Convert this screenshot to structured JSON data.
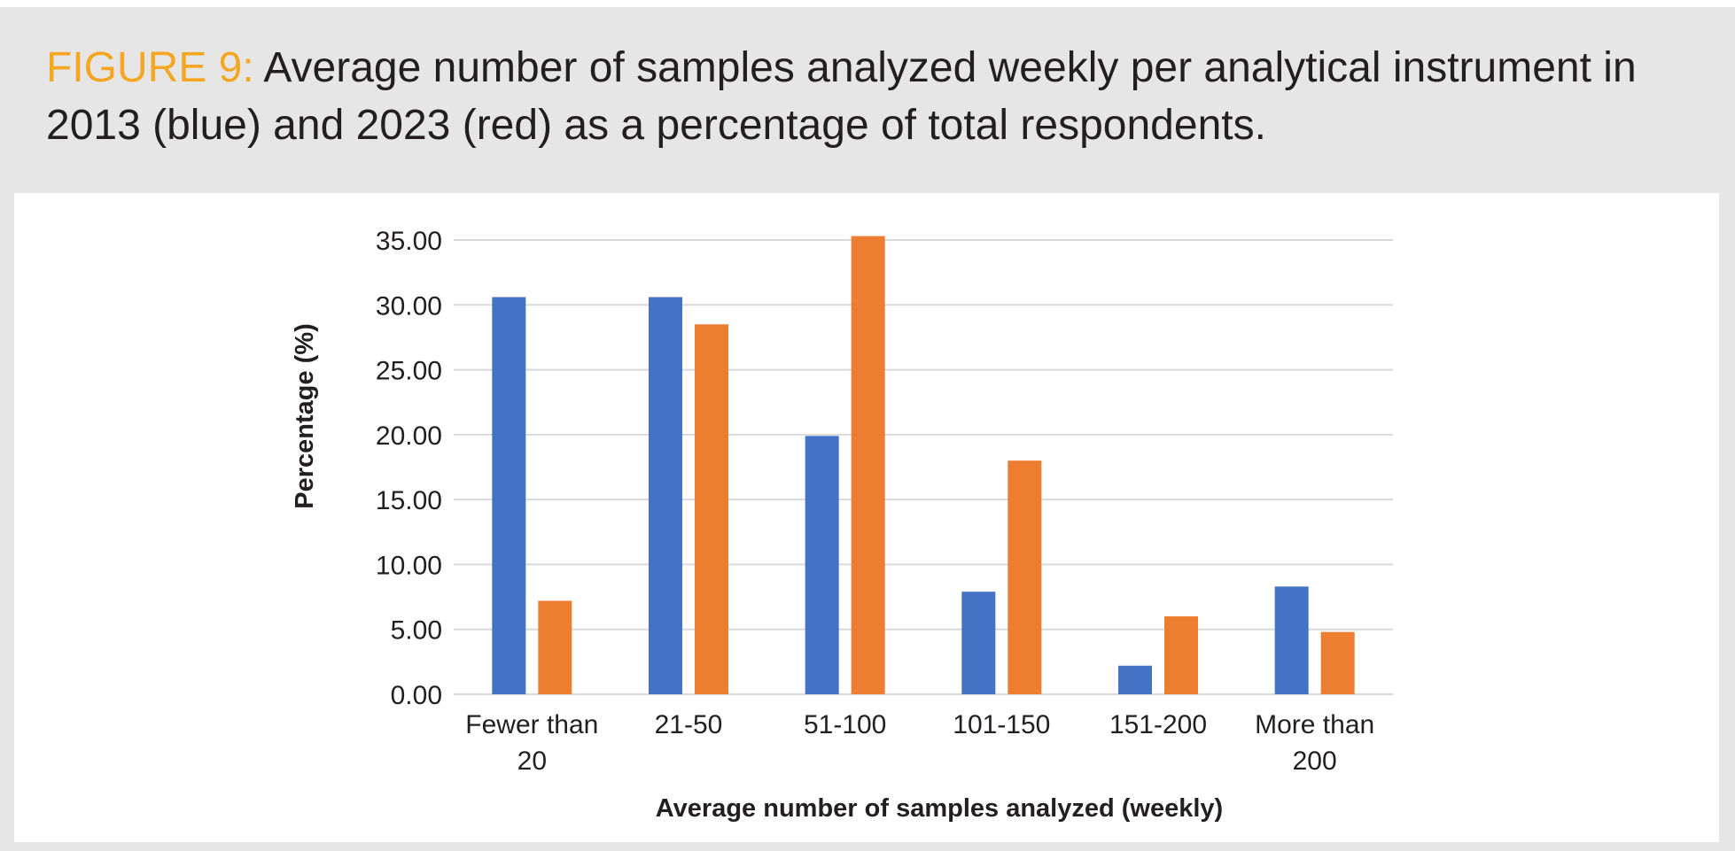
{
  "caption": {
    "label": "FIGURE 9:",
    "text": "Average number of samples analyzed weekly per analytical instrument in 2013 (blue) and 2023 (red) as a percentage of total respondents."
  },
  "colors": {
    "label": "#f5a623",
    "series_2013": "#4472c4",
    "series_2023": "#ed7d31",
    "gridline": "#d9d9d9",
    "text": "#231f20"
  },
  "chart_data": {
    "type": "bar",
    "title": "",
    "xlabel": "Average number of samples analyzed (weekly)",
    "ylabel": "Percentage (%)",
    "ylim": [
      0,
      35
    ],
    "yticks": [
      "0.00",
      "5.00",
      "10.00",
      "15.00",
      "20.00",
      "25.00",
      "30.00",
      "35.00"
    ],
    "categories": [
      [
        "Fewer than",
        "20"
      ],
      [
        "21-50"
      ],
      [
        "51-100"
      ],
      [
        "101-150"
      ],
      [
        "151-200"
      ],
      [
        "More than",
        "200"
      ]
    ],
    "series": [
      {
        "name": "2013",
        "color": "#4472c4",
        "values": [
          30.6,
          30.6,
          19.9,
          7.9,
          2.2,
          8.3
        ]
      },
      {
        "name": "2023",
        "color": "#ed7d31",
        "values": [
          7.2,
          28.5,
          35.3,
          18.0,
          6.0,
          4.8
        ]
      }
    ],
    "grid": true,
    "legend": "none"
  }
}
